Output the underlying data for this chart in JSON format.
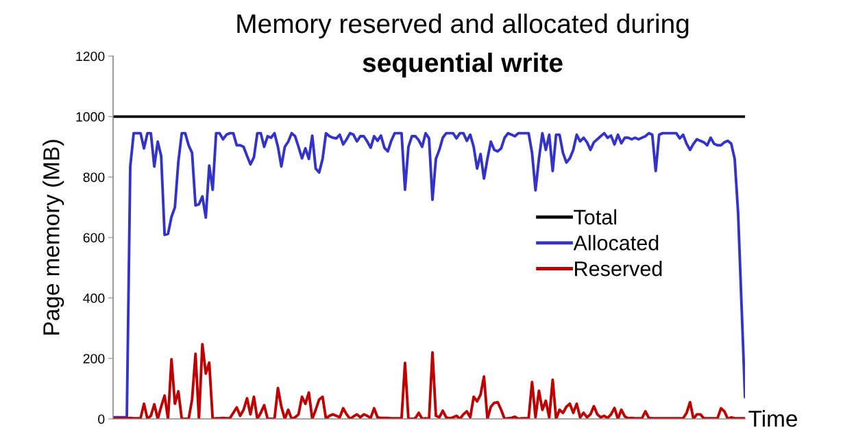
{
  "chart_data": {
    "type": "line",
    "title": "Memory reserved and allocated during",
    "subtitle": "sequential write",
    "ylabel": "Page memory (MB)",
    "xlabel": "Time",
    "ylim": [
      0,
      1200
    ],
    "yticks": [
      0,
      200,
      400,
      600,
      800,
      1000,
      1200
    ],
    "grid": false,
    "legend": "right",
    "tick_labels": "y",
    "marker": "none",
    "line_style": "solid",
    "categories": [
      null,
      null,
      null,
      null,
      null,
      null,
      null,
      null,
      null,
      null,
      null,
      null,
      null,
      null,
      null,
      null,
      null,
      null,
      null,
      null,
      null,
      null,
      null,
      null,
      null,
      null,
      null,
      null,
      null,
      null,
      null,
      null,
      null,
      null,
      null,
      null,
      null,
      null,
      null,
      null,
      null,
      null,
      null,
      null,
      null,
      null,
      null,
      null,
      null,
      null,
      null,
      null,
      null,
      null,
      null,
      null,
      null,
      null,
      null,
      null,
      null,
      null,
      null,
      null,
      null,
      null,
      null,
      null,
      null,
      null,
      null,
      null,
      null,
      null,
      null,
      null,
      null,
      null,
      null,
      null,
      null,
      null,
      null,
      null,
      null,
      null,
      null,
      null,
      null,
      null,
      null,
      null,
      null,
      null,
      null,
      null,
      null,
      null,
      null,
      null,
      null,
      null,
      null,
      null,
      null,
      null,
      null,
      null,
      null,
      null,
      null,
      null,
      null,
      null,
      null,
      null,
      null,
      null,
      null,
      null,
      null,
      null,
      null,
      null,
      null,
      null,
      null,
      null,
      null,
      null,
      null,
      null,
      null,
      null,
      null,
      null,
      null,
      null,
      null,
      null,
      null,
      null,
      null,
      null,
      null,
      null,
      null,
      null,
      null,
      null,
      null,
      null,
      null,
      null,
      null,
      null,
      null,
      null,
      null,
      null,
      null,
      null,
      null,
      null,
      null,
      null,
      null,
      null,
      null,
      null,
      null,
      null,
      null,
      null,
      null,
      null,
      null,
      null,
      null,
      null,
      null,
      null,
      null,
      null,
      null
    ],
    "series": [
      {
        "name": "Total",
        "color": "#000000",
        "values": [
          1000,
          1000,
          1000,
          1000,
          1000,
          1000,
          1000,
          1000,
          1000,
          1000,
          1000,
          1000,
          1000,
          1000,
          1000,
          1000,
          1000,
          1000,
          1000,
          1000,
          1000,
          1000,
          1000,
          1000,
          1000,
          1000,
          1000,
          1000,
          1000,
          1000,
          1000,
          1000,
          1000,
          1000,
          1000,
          1000,
          1000,
          1000,
          1000,
          1000,
          1000,
          1000,
          1000,
          1000,
          1000,
          1000,
          1000,
          1000,
          1000,
          1000,
          1000,
          1000,
          1000,
          1000,
          1000,
          1000,
          1000,
          1000,
          1000,
          1000,
          1000,
          1000,
          1000,
          1000,
          1000,
          1000,
          1000,
          1000,
          1000,
          1000,
          1000,
          1000,
          1000,
          1000,
          1000,
          1000,
          1000,
          1000,
          1000,
          1000,
          1000,
          1000,
          1000,
          1000,
          1000,
          1000,
          1000,
          1000,
          1000,
          1000,
          1000,
          1000,
          1000,
          1000,
          1000,
          1000,
          1000,
          1000,
          1000,
          1000,
          1000,
          1000,
          1000,
          1000,
          1000,
          1000,
          1000,
          1000,
          1000,
          1000,
          1000,
          1000,
          1000,
          1000,
          1000,
          1000,
          1000,
          1000,
          1000,
          1000,
          1000,
          1000,
          1000,
          1000,
          1000,
          1000,
          1000,
          1000,
          1000,
          1000,
          1000,
          1000,
          1000,
          1000,
          1000,
          1000,
          1000,
          1000,
          1000,
          1000,
          1000,
          1000,
          1000,
          1000,
          1000,
          1000,
          1000,
          1000,
          1000,
          1000,
          1000,
          1000,
          1000,
          1000,
          1000,
          1000,
          1000,
          1000,
          1000,
          1000,
          1000,
          1000,
          1000,
          1000,
          1000,
          1000,
          1000,
          1000,
          1000,
          1000,
          1000,
          1000,
          1000,
          1000,
          1000,
          1000,
          1000,
          1000,
          1000,
          1000,
          1000,
          1000,
          1000,
          1000,
          1000
        ]
      },
      {
        "name": "Allocated",
        "color": "#3333cc",
        "values": [
          5,
          5,
          5,
          5,
          5,
          835,
          945,
          945,
          945,
          895,
          945,
          945,
          835,
          917,
          870,
          609,
          612,
          668,
          700,
          850,
          945,
          945,
          905,
          880,
          706,
          710,
          736,
          666,
          838,
          758,
          945,
          945,
          925,
          940,
          945,
          945,
          905,
          905,
          900,
          870,
          842,
          865,
          945,
          945,
          900,
          935,
          930,
          945,
          900,
          835,
          900,
          917,
          945,
          935,
          900,
          862,
          895,
          860,
          937,
          828,
          815,
          860,
          945,
          935,
          930,
          928,
          940,
          908,
          925,
          945,
          940,
          918,
          935,
          935,
          918,
          897,
          935,
          920,
          937,
          897,
          885,
          920,
          945,
          945,
          945,
          758,
          900,
          935,
          935,
          922,
          900,
          945,
          928,
          725,
          860,
          890,
          930,
          945,
          945,
          945,
          928,
          945,
          945,
          920,
          940,
          900,
          828,
          876,
          795,
          860,
          917,
          890,
          885,
          895,
          930,
          945,
          940,
          935,
          945,
          945,
          945,
          945,
          880,
          756,
          860,
          945,
          890,
          940,
          820,
          940,
          940,
          880,
          848,
          862,
          890,
          940,
          918,
          930,
          915,
          890,
          915,
          925,
          935,
          945,
          930,
          937,
          908,
          940,
          912,
          930,
          930,
          925,
          930,
          925,
          930,
          935,
          945,
          940,
          820,
          940,
          945,
          945,
          945,
          945,
          945,
          928,
          940,
          910,
          890,
          910,
          925,
          920,
          915,
          905,
          930,
          910,
          905,
          905,
          915,
          920,
          910,
          860,
          680,
          375,
          72
        ]
      },
      {
        "name": "Reserved",
        "color": "#c00000",
        "values": [
          2,
          2,
          2,
          2,
          2,
          3,
          2,
          2,
          2,
          50,
          0,
          10,
          48,
          0,
          40,
          77,
          0,
          197,
          50,
          91,
          0,
          0,
          0,
          64,
          215,
          0,
          247,
          150,
          186,
          0,
          2,
          2,
          3,
          2,
          2,
          20,
          38,
          10,
          30,
          68,
          15,
          73,
          0,
          20,
          45,
          0,
          0,
          0,
          102,
          40,
          0,
          30,
          0,
          5,
          15,
          73,
          50,
          87,
          0,
          30,
          64,
          73,
          0,
          10,
          15,
          10,
          5,
          35,
          15,
          0,
          8,
          15,
          5,
          15,
          10,
          3,
          35,
          5,
          3,
          3,
          3,
          2,
          2,
          2,
          2,
          185,
          0,
          0,
          2,
          20,
          0,
          2,
          0,
          220,
          10,
          5,
          27,
          5,
          2,
          5,
          10,
          0,
          15,
          25,
          5,
          73,
          58,
          80,
          140,
          0,
          40,
          53,
          55,
          30,
          0,
          2,
          3,
          7,
          0,
          2,
          2,
          2,
          122,
          5,
          93,
          30,
          60,
          5,
          129,
          0,
          30,
          20,
          40,
          50,
          20,
          50,
          5,
          20,
          5,
          15,
          42,
          15,
          5,
          10,
          3,
          15,
          36,
          0,
          30,
          8,
          2,
          3,
          2,
          2,
          2,
          25,
          3,
          2,
          2,
          2,
          2,
          2,
          2,
          2,
          2,
          2,
          2,
          20,
          55,
          0,
          15,
          15,
          2,
          2,
          2,
          2,
          2,
          35,
          25,
          0,
          5,
          2,
          2,
          2,
          2
        ]
      }
    ]
  }
}
